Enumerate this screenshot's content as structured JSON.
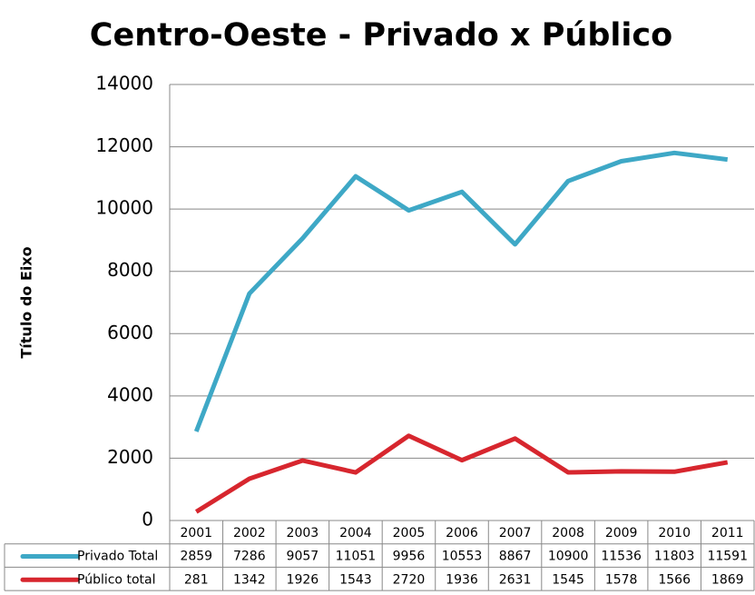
{
  "chart_data": {
    "type": "line",
    "title": "Centro-Oeste - Privado x Público",
    "y_label": "Título do Eixo",
    "categories": [
      "2001",
      "2002",
      "2003",
      "2004",
      "2005",
      "2006",
      "2007",
      "2008",
      "2009",
      "2010",
      "2011"
    ],
    "series": [
      {
        "name": "Privado Total",
        "color": "#3ea8c6",
        "values": [
          2859,
          7286,
          9057,
          11051,
          9956,
          10553,
          8867,
          10900,
          11536,
          11803,
          11591
        ]
      },
      {
        "name": "Público total",
        "color": "#d7262e",
        "values": [
          281,
          1342,
          1926,
          1543,
          2720,
          1936,
          2631,
          1545,
          1578,
          1566,
          1869
        ]
      }
    ],
    "ylim": [
      0,
      14000
    ],
    "yticks": [
      0,
      2000,
      4000,
      6000,
      8000,
      10000,
      12000,
      14000
    ],
    "grid": true,
    "data_table": true
  }
}
